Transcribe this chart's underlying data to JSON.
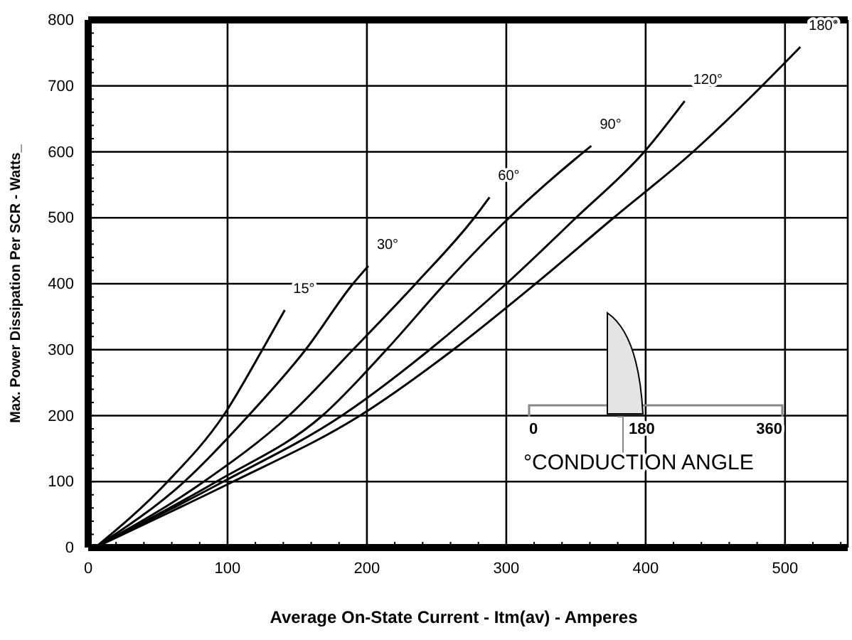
{
  "chart_data": {
    "type": "line",
    "xlabel": "Average On-State Current - Itm(av) - Amperes",
    "ylabel": "Max. Power Dissipation Per SCR - Watts_",
    "xlim": [
      0,
      545
    ],
    "xticks": [
      0,
      100,
      200,
      300,
      400,
      500
    ],
    "ylim": [
      0,
      800
    ],
    "yticks": [
      0,
      100,
      200,
      300,
      400,
      500,
      600,
      700,
      800
    ],
    "grid": true,
    "marker": "none",
    "line_style": "solid",
    "series": [
      {
        "name": "15°",
        "color": "#000000",
        "x": [
          5,
          57,
          97,
          125,
          141
        ],
        "values": [
          0,
          100,
          200,
          300,
          360
        ]
      },
      {
        "name": "30°",
        "color": "#000000",
        "x": [
          5,
          69,
          115,
          156,
          190,
          201
        ],
        "values": [
          0,
          100,
          200,
          300,
          400,
          427
        ]
      },
      {
        "name": "60°",
        "color": "#000000",
        "x": [
          5,
          83,
          144,
          190,
          235,
          277,
          288
        ],
        "values": [
          0,
          100,
          200,
          300,
          400,
          500,
          531
        ]
      },
      {
        "name": "90°",
        "color": "#000000",
        "x": [
          5,
          92,
          168,
          214,
          256,
          302,
          350,
          361
        ],
        "values": [
          0,
          100,
          200,
          300,
          400,
          500,
          590,
          609
        ]
      },
      {
        "name": "120°",
        "color": "#000000",
        "x": [
          5,
          97,
          182,
          245,
          300,
          350,
          399,
          428
        ],
        "values": [
          0,
          100,
          200,
          300,
          400,
          500,
          600,
          677
        ]
      },
      {
        "name": "180°",
        "color": "#000000",
        "x": [
          5,
          50,
          104,
          195,
          262,
          321,
          377,
          434,
          474,
          511
        ],
        "values": [
          0,
          45,
          100,
          200,
          300,
          400,
          500,
          600,
          680,
          759
        ]
      }
    ],
    "annotations": [
      "0",
      "180",
      "360",
      "°CONDUCTION ANGLE"
    ]
  }
}
